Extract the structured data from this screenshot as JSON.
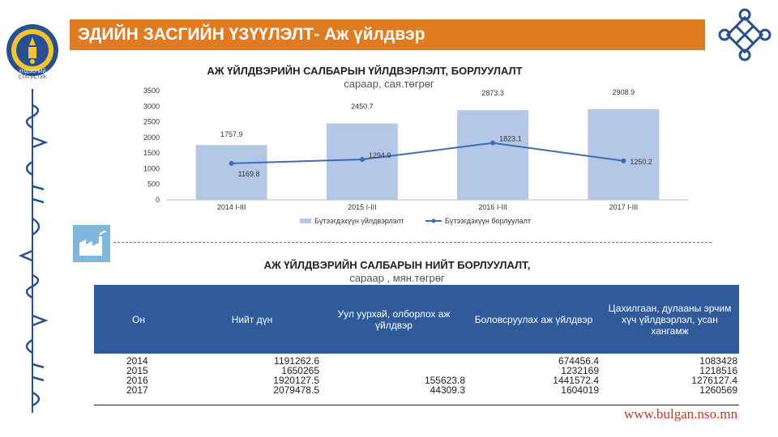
{
  "header": {
    "title": "ЭДИЙН ЗАСГИЙН ҮЗҮҮЛЭЛТ- Аж үйлдвэр"
  },
  "colors": {
    "accent_orange": "#e07b22",
    "table_header_blue": "#2f5b9a",
    "bar_blue": "#b4c7e7",
    "line_blue": "#3d6db5",
    "emblem_blue": "#2a4f8f",
    "website_red": "#c0392b"
  },
  "icons": {
    "emblem": "mongolia-emblem-icon",
    "knot": "endless-knot-icon",
    "factory": "factory-icon"
  },
  "logo": {
    "text_line1": "ҮНДЭСНИЙ",
    "text_line2": "СТАТИСТИК"
  },
  "chart_data": {
    "type": "bar",
    "title": "АЖ ҮЙЛДВЭРИЙН САЛБАРЫН ҮЙЛДВЭРЛЭЛТ, БОРЛУУЛАЛТ",
    "subtitle": "сараар, сая.төгрөг",
    "categories": [
      "2014  I-III",
      "2015  I-III",
      "2016  I-III",
      "2017  I-III"
    ],
    "ylim": [
      0,
      3500
    ],
    "yticks": [
      "0",
      "500",
      "1000",
      "1500",
      "2000",
      "2500",
      "3000",
      "3500"
    ],
    "series": [
      {
        "name": "Бүтээгдэхүүн үйлдвэрлэлт",
        "type": "bar",
        "values": [
          1757.9,
          2450.7,
          2873.3,
          2908.9
        ],
        "labels": [
          "1757.9",
          "2450.7",
          "2873.3",
          "2908.9"
        ]
      },
      {
        "name": "Бүтээгдэхүүн борлуулалт",
        "type": "line",
        "values": [
          1169.8,
          1294.9,
          1823.1,
          1250.2
        ],
        "labels": [
          "1169.8",
          "1294.9",
          "1823.1",
          "1250.2"
        ]
      }
    ],
    "grid": false,
    "legend": "bottom"
  },
  "table": {
    "title": "АЖ ҮЙЛДВЭРИЙН САЛБАРЫН НИЙТ БОРЛУУЛАЛТ,",
    "subtitle": "сараар , мян.төгрөг",
    "headers": [
      "Он",
      "Нийт дүн",
      "Уул уурхай, олборлох аж үйлдвэр",
      "Боловсруулах аж үйлдвэр",
      "Цахилгаан, дулааны эрчим хүч үйлдвэрлэл, усан хангамж"
    ],
    "rows": [
      {
        "year": "2014",
        "total": "1191262.6",
        "mining": "",
        "processing": "674456.4",
        "energy": "1083428"
      },
      {
        "year": "2015",
        "total": "1650265",
        "mining": "",
        "processing": "1232169",
        "energy": "1218516"
      },
      {
        "year": "2016",
        "total": "1920127.5",
        "mining": "155623.8",
        "processing": "1441572.4",
        "energy": "1276127.4"
      },
      {
        "year": "2017",
        "total": "2079478.5",
        "mining": "44309.3",
        "processing": "1604019",
        "energy": "1260569"
      }
    ]
  },
  "footer": {
    "website": "www.bulgan.nso.mn"
  }
}
